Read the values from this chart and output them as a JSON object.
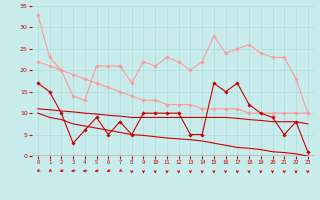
{
  "x": [
    0,
    1,
    2,
    3,
    4,
    5,
    6,
    7,
    8,
    9,
    10,
    11,
    12,
    13,
    14,
    15,
    16,
    17,
    18,
    19,
    20,
    21,
    22,
    23
  ],
  "series": [
    {
      "color": "#FF9999",
      "linewidth": 0.8,
      "marker": "D",
      "markersize": 1.8,
      "y": [
        33,
        23,
        20,
        14,
        13,
        21,
        21,
        21,
        17,
        22,
        21,
        23,
        22,
        20,
        22,
        28,
        24,
        25,
        26,
        24,
        23,
        23,
        18,
        10
      ]
    },
    {
      "color": "#FF9999",
      "linewidth": 0.8,
      "marker": "D",
      "markersize": 1.8,
      "y": [
        22,
        21,
        20,
        19,
        18,
        17,
        16,
        15,
        14,
        13,
        13,
        12,
        12,
        12,
        11,
        11,
        11,
        11,
        10,
        10,
        10,
        10,
        10,
        10
      ]
    },
    {
      "color": "#CC0000",
      "linewidth": 0.8,
      "marker": "D",
      "markersize": 1.8,
      "y": [
        17,
        15,
        10,
        3,
        6,
        9,
        5,
        8,
        5,
        10,
        10,
        10,
        10,
        5,
        5,
        17,
        15,
        17,
        12,
        10,
        9,
        5,
        8,
        1
      ]
    },
    {
      "color": "#CC0000",
      "linewidth": 0.8,
      "marker": null,
      "markersize": 0,
      "y": [
        11.0,
        10.8,
        10.5,
        10.3,
        10.0,
        9.8,
        9.5,
        9.3,
        9.0,
        9.0,
        9.0,
        9.0,
        9.0,
        9.0,
        9.0,
        9.0,
        9.0,
        8.8,
        8.5,
        8.3,
        8.0,
        8.0,
        8.0,
        7.5
      ]
    },
    {
      "color": "#CC0000",
      "linewidth": 0.8,
      "marker": null,
      "markersize": 0,
      "y": [
        10.0,
        9.0,
        8.5,
        7.5,
        7.0,
        6.5,
        6.0,
        5.5,
        5.0,
        4.8,
        4.5,
        4.2,
        4.0,
        3.8,
        3.5,
        3.0,
        2.5,
        2.0,
        1.8,
        1.5,
        1.0,
        0.8,
        0.5,
        0.0
      ]
    }
  ],
  "xlim": [
    -0.5,
    23.5
  ],
  "ylim": [
    0,
    35
  ],
  "yticks": [
    0,
    5,
    10,
    15,
    20,
    25,
    30,
    35
  ],
  "xticks": [
    0,
    1,
    2,
    3,
    4,
    5,
    6,
    7,
    8,
    9,
    10,
    11,
    12,
    13,
    14,
    15,
    16,
    17,
    18,
    19,
    20,
    21,
    22,
    23
  ],
  "bg_color": "#C8ECEC",
  "grid_color": "#AADDDD",
  "red_color": "#CC0000"
}
